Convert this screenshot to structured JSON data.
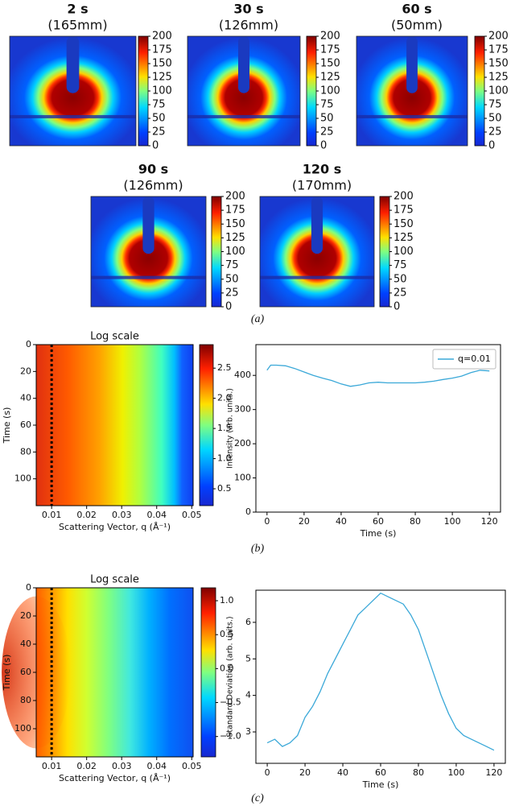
{
  "chart_data": [
    {
      "type": "image",
      "title": "2 s",
      "subtitle": "(165mm)",
      "clim": [
        0,
        200
      ],
      "cticks": [
        0,
        25,
        50,
        75,
        100,
        125,
        150,
        175,
        200
      ],
      "colormap": "jet"
    },
    {
      "type": "image",
      "title": "30 s",
      "subtitle": "(126mm)",
      "clim": [
        0,
        200
      ],
      "cticks": [
        0,
        25,
        50,
        75,
        100,
        125,
        150,
        175,
        200
      ],
      "colormap": "jet"
    },
    {
      "type": "image",
      "title": "60 s",
      "subtitle": "(50mm)",
      "clim": [
        0,
        200
      ],
      "cticks": [
        0,
        25,
        50,
        75,
        100,
        125,
        150,
        175,
        200
      ],
      "colormap": "jet"
    },
    {
      "type": "image",
      "title": "90 s",
      "subtitle": "(126mm)",
      "clim": [
        0,
        200
      ],
      "cticks": [
        0,
        25,
        50,
        75,
        100,
        125,
        150,
        175,
        200
      ],
      "colormap": "jet"
    },
    {
      "type": "image",
      "title": "120 s",
      "subtitle": "(170mm)",
      "clim": [
        0,
        200
      ],
      "cticks": [
        0,
        25,
        50,
        75,
        100,
        125,
        150,
        175,
        200
      ],
      "colormap": "jet"
    },
    {
      "type": "heatmap",
      "title": "Log scale",
      "xlabel": "Scattering Vector, q (Å⁻¹)",
      "ylabel": "Time (s)",
      "xlim": [
        0.0056,
        0.0504
      ],
      "xticks": [
        0.01,
        0.02,
        0.03,
        0.04,
        0.05
      ],
      "ylim": [
        0,
        120
      ],
      "yticks": [
        0,
        20,
        40,
        60,
        80,
        100
      ],
      "yaxis_inverted": true,
      "vline": 0.01,
      "clim": [
        0.22,
        2.89
      ],
      "cticks": [
        0.5,
        {
          "value": 1.0,
          "label": "1.0"
        },
        1.5,
        {
          "value": 2.0,
          "label": "2.0"
        },
        2.5
      ],
      "colormap": "jet"
    },
    {
      "type": "line",
      "xlabel": "Time (s)",
      "ylabel": "Intensity (arb. units.)",
      "x": [
        0,
        2,
        5,
        10,
        15,
        20,
        25,
        30,
        35,
        40,
        45,
        50,
        55,
        60,
        65,
        70,
        75,
        80,
        85,
        90,
        95,
        100,
        105,
        110,
        115,
        120
      ],
      "series": [
        {
          "name": "q=0.01",
          "color": "#3aa8d8",
          "values": [
            415,
            430,
            430,
            428,
            420,
            410,
            400,
            392,
            385,
            375,
            368,
            372,
            378,
            380,
            378,
            378,
            378,
            378,
            380,
            383,
            388,
            392,
            398,
            408,
            415,
            413
          ]
        }
      ],
      "xlim": [
        -6,
        126
      ],
      "xticks": [
        0,
        20,
        40,
        60,
        80,
        100,
        120
      ],
      "ylim": [
        0,
        490
      ],
      "yticks": [
        0,
        100,
        200,
        300,
        400
      ],
      "legend": "upper right"
    },
    {
      "type": "heatmap",
      "title": "Log scale",
      "xlabel": "Scattering Vector, q (Å⁻¹)",
      "ylabel": "Time (s)",
      "xlim": [
        0.0056,
        0.0504
      ],
      "xticks": [
        0.01,
        0.02,
        0.03,
        0.04,
        0.05
      ],
      "ylim": [
        0,
        120
      ],
      "yticks": [
        0,
        20,
        40,
        60,
        80,
        100
      ],
      "yaxis_inverted": true,
      "vline": 0.01,
      "clim": [
        -1.3,
        1.19
      ],
      "cticks": [
        {
          "value": -1.0,
          "label": "−1.0"
        },
        {
          "value": -0.5,
          "label": "−0.5"
        },
        {
          "value": 0,
          "label": "0.0"
        },
        0.5,
        {
          "value": 1.0,
          "label": "1.0"
        }
      ],
      "colormap": "jet"
    },
    {
      "type": "line",
      "xlabel": "Time (s)",
      "ylabel": "Standard Deviation (arb. units.)",
      "x": [
        0,
        4,
        8,
        12,
        16,
        20,
        24,
        28,
        32,
        36,
        40,
        44,
        48,
        52,
        56,
        60,
        64,
        68,
        72,
        76,
        80,
        84,
        88,
        92,
        96,
        100,
        104,
        108,
        112,
        116,
        120
      ],
      "series": [
        {
          "color": "#3aa8d8",
          "values": [
            2.7,
            2.8,
            2.6,
            2.7,
            2.9,
            3.4,
            3.7,
            4.1,
            4.6,
            5.0,
            5.4,
            5.8,
            6.2,
            6.4,
            6.6,
            6.8,
            6.7,
            6.6,
            6.5,
            6.2,
            5.8,
            5.2,
            4.6,
            4.0,
            3.5,
            3.1,
            2.9,
            2.8,
            2.7,
            2.6,
            2.5
          ]
        }
      ],
      "xlim": [
        -6,
        126
      ],
      "xticks": [
        0,
        20,
        40,
        60,
        80,
        100,
        120
      ],
      "ylim": [
        2.14,
        6.88
      ],
      "yticks": [
        3,
        4,
        5,
        6
      ]
    }
  ],
  "panel_labels": [
    "(a)",
    "(b)",
    "(c)"
  ]
}
